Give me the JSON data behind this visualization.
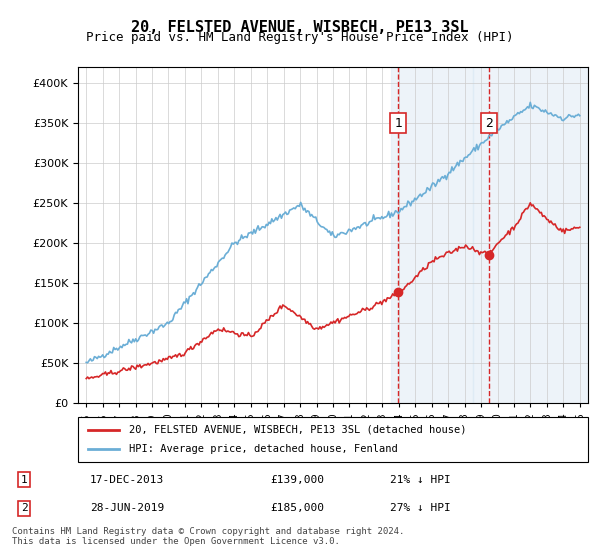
{
  "title": "20, FELSTED AVENUE, WISBECH, PE13 3SL",
  "subtitle": "Price paid vs. HM Land Registry's House Price Index (HPI)",
  "legend_line1": "20, FELSTED AVENUE, WISBECH, PE13 3SL (detached house)",
  "legend_line2": "HPI: Average price, detached house, Fenland",
  "annotation1_label": "1",
  "annotation1_date": "17-DEC-2013",
  "annotation1_price": "£139,000",
  "annotation1_hpi": "21% ↓ HPI",
  "annotation2_label": "2",
  "annotation2_date": "28-JUN-2019",
  "annotation2_price": "£185,000",
  "annotation2_hpi": "27% ↓ HPI",
  "footer": "Contains HM Land Registry data © Crown copyright and database right 2024.\nThis data is licensed under the Open Government Licence v3.0.",
  "hpi_color": "#6baed6",
  "price_color": "#d62728",
  "marker1_x": 2013.96,
  "marker1_y": 139000,
  "marker2_x": 2019.49,
  "marker2_y": 185000,
  "vspan1_x0": 2013.5,
  "vspan1_x1": 2018.5,
  "vspan2_x0": 2018.5,
  "vspan2_x1": 2025.5,
  "ylim": [
    0,
    420000
  ],
  "xlim": [
    1994.5,
    2025.5
  ]
}
